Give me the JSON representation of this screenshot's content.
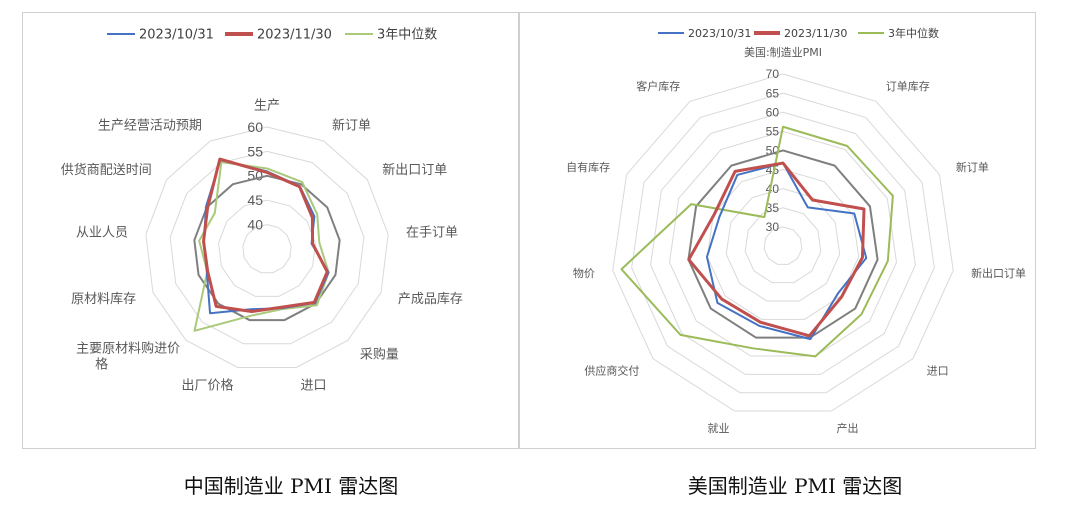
{
  "chart_data": [
    {
      "type": "radar",
      "legend_position": "top",
      "grid": true,
      "rlim": [
        35,
        60
      ],
      "tick_labels": [
        "40",
        "45",
        "50",
        "55",
        "60"
      ],
      "axes": [
        "生产",
        "新订单",
        "新出口订单",
        "在手订单",
        "产成品库存",
        "采购量",
        "进口",
        "出厂价格",
        "主要原材料购进价格",
        "原材料库存",
        "从业人员",
        "供货商配送时间",
        "生产经营活动预期"
      ],
      "series": [
        {
          "name": "2023/10/31",
          "color": "#4472C4",
          "values": [
            50.9,
            49.5,
            46.8,
            44.2,
            48.5,
            49.8,
            47.5,
            47.7,
            52.6,
            48.2,
            48.0,
            50.2,
            55.6
          ]
        },
        {
          "name": "2023/11/30",
          "color": "#C0504D",
          "values": [
            50.7,
            49.4,
            46.3,
            44.4,
            48.2,
            49.6,
            47.3,
            48.2,
            50.7,
            48.0,
            48.1,
            49.8,
            55.8
          ]
        },
        {
          "name": "3年中位数",
          "color": "#A9C97B",
          "values": [
            51.5,
            50.5,
            47.5,
            45.8,
            48.5,
            50.4,
            47.7,
            49.1,
            57.4,
            48.1,
            49.0,
            48.0,
            55.1
          ]
        },
        {
          "color": "#7F7F7F",
          "values": [
            50,
            50,
            50,
            50,
            50,
            50,
            50,
            50,
            50,
            50,
            50,
            50,
            50
          ]
        }
      ]
    },
    {
      "type": "radar",
      "legend_position": "top",
      "grid": true,
      "rlim": [
        25,
        70
      ],
      "tick_labels": [
        "30",
        "35",
        "40",
        "45",
        "50",
        "55",
        "60",
        "65",
        "70"
      ],
      "axes": [
        "美国:制造业PMI",
        "订单库存",
        "新订单",
        "新出口订单",
        "进口",
        "产出",
        "就业",
        "供应商交付",
        "物价",
        "自有库存",
        "客户库存"
      ],
      "series": [
        {
          "name": "2023/10/31",
          "color": "#4472C4",
          "values": [
            46.7,
            37.0,
            45.5,
            47.0,
            44.0,
            50.4,
            46.8,
            47.7,
            45.1,
            43.3,
            47.1
          ]
        },
        {
          "name": "2023/11/30",
          "color": "#C0504D",
          "values": [
            46.7,
            39.3,
            48.3,
            46.0,
            45.3,
            49.5,
            45.8,
            46.2,
            49.9,
            44.8,
            48.2
          ]
        },
        {
          "name": "3年中位数",
          "color": "#9BBB59",
          "values": [
            56.2,
            56.1,
            56.6,
            52.7,
            52.2,
            55.1,
            52.9,
            60.5,
            67.7,
            51.4,
            34.0
          ]
        },
        {
          "color": "#7F7F7F",
          "values": [
            50,
            50,
            50,
            50,
            50,
            50,
            50,
            50,
            50,
            50,
            50
          ]
        }
      ]
    }
  ],
  "captions": {
    "cn": "中国制造业 PMI 雷达图",
    "us": "美国制造业 PMI 雷达图"
  }
}
